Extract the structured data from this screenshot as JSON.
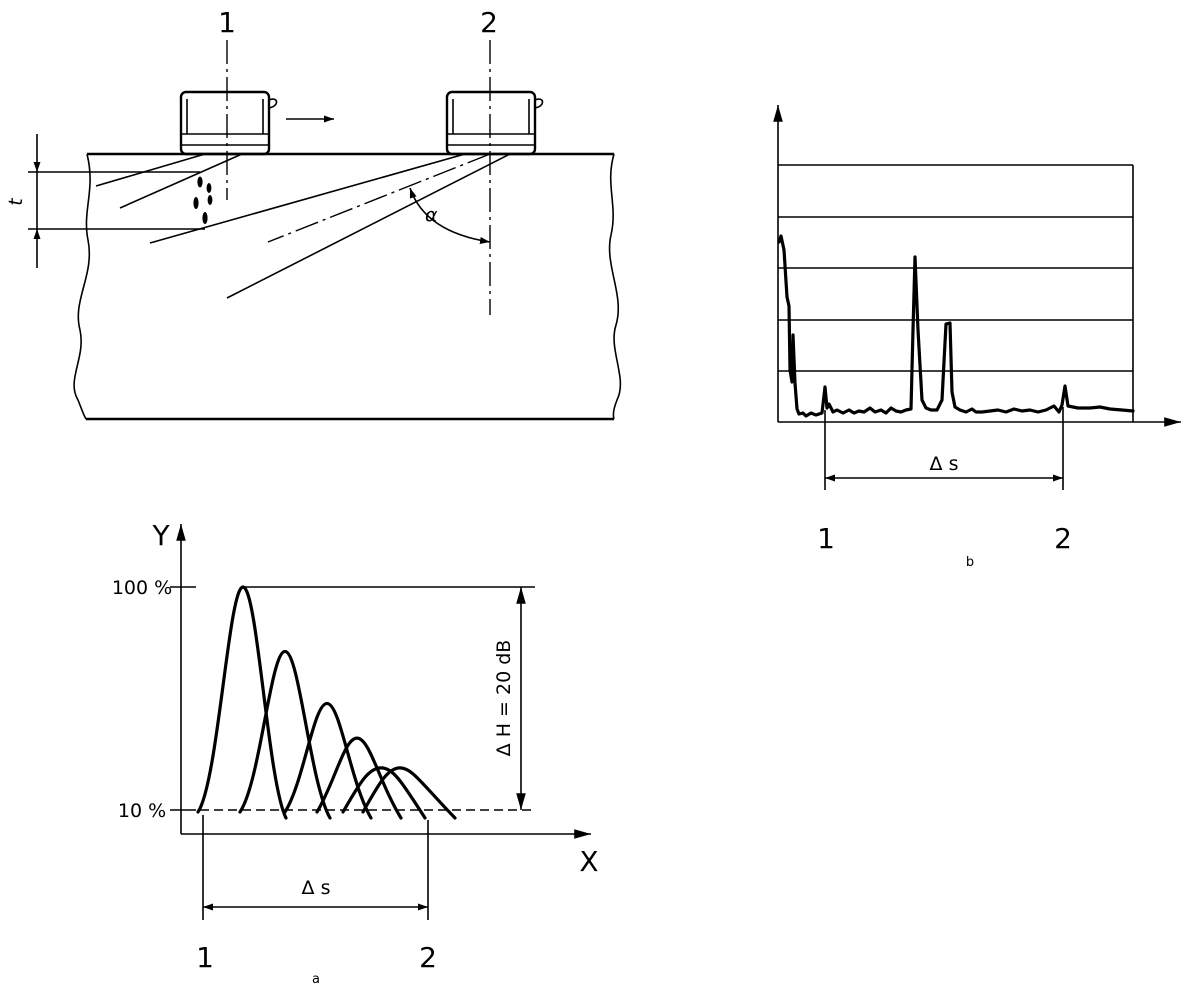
{
  "figure_a": {
    "y_axis_label": "Y",
    "x_axis_label": "X",
    "tick_top": "100 %",
    "tick_bottom": "10 %",
    "delta_h_label": "Δ H = 20 dB",
    "delta_s_label": "Δ s",
    "pos1_label": "1",
    "pos2_label": "2",
    "caption": "a",
    "echo_envelopes": [
      {
        "peak_y": 100
      },
      {
        "peak_y": 74
      },
      {
        "peak_y": 53
      },
      {
        "peak_y": 39
      },
      {
        "peak_y": 27
      },
      {
        "peak_y": 27
      }
    ]
  },
  "figure_b": {
    "delta_s_label": "Δ s",
    "pos1_label": "1",
    "pos2_label": "2",
    "caption": "b"
  },
  "setup": {
    "probe1_label": "1",
    "probe2_label": "2",
    "thickness_label": "t",
    "angle_label": "α"
  }
}
